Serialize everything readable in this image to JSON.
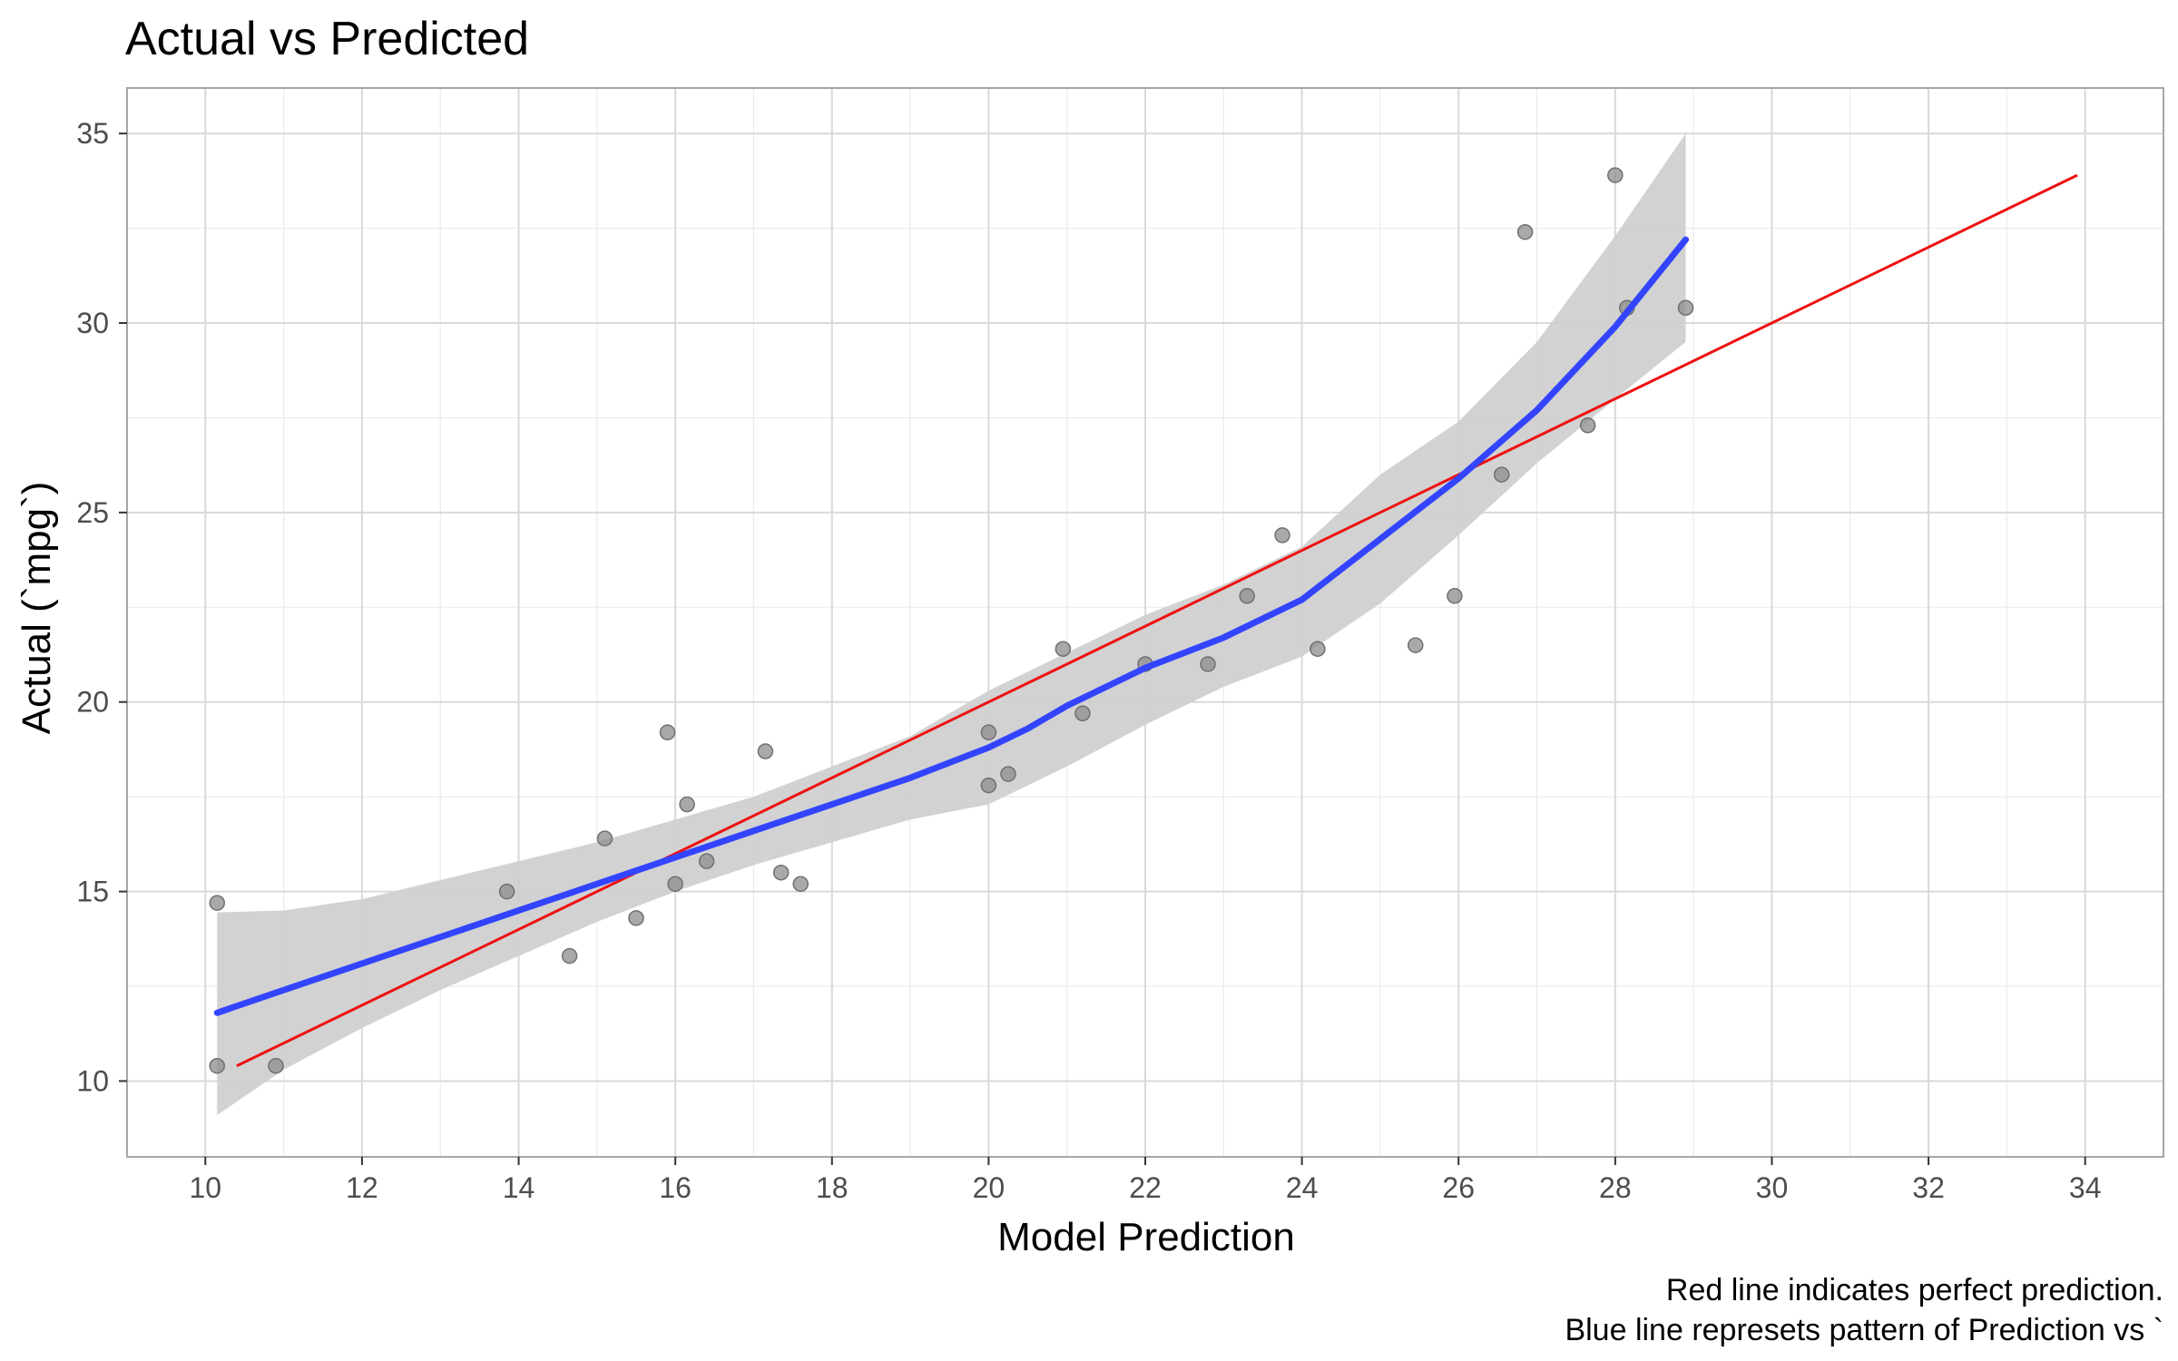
{
  "chart_data": {
    "type": "scatter",
    "title": "Actual vs Predicted",
    "xlabel": "Model Prediction",
    "ylabel": "Actual (`mpg`)",
    "caption": [
      "Red line indicates perfect prediction.",
      "Blue line represets pattern of Prediction vs `"
    ],
    "xlim": [
      9,
      35
    ],
    "ylim": [
      8,
      36.2
    ],
    "x_ticks": [
      10,
      12,
      14,
      16,
      18,
      20,
      22,
      24,
      26,
      28,
      30,
      32,
      34
    ],
    "y_ticks": [
      10,
      15,
      20,
      25,
      30,
      35
    ],
    "grid": true,
    "colors": {
      "points": "#8c8c8c",
      "smooth": "#3344ff",
      "ribbon": "#d0d0d0",
      "perfect_line": "#ee1111",
      "grid": "#d9d9d9",
      "panel_border": "#a6a6a6"
    },
    "points": [
      {
        "x": 10.15,
        "y": 14.7
      },
      {
        "x": 10.15,
        "y": 10.4
      },
      {
        "x": 10.9,
        "y": 10.4
      },
      {
        "x": 13.85,
        "y": 15.0
      },
      {
        "x": 14.65,
        "y": 13.3
      },
      {
        "x": 15.1,
        "y": 16.4
      },
      {
        "x": 15.5,
        "y": 14.3
      },
      {
        "x": 15.9,
        "y": 19.2
      },
      {
        "x": 16.0,
        "y": 15.2
      },
      {
        "x": 16.15,
        "y": 17.3
      },
      {
        "x": 16.4,
        "y": 15.8
      },
      {
        "x": 17.15,
        "y": 18.7
      },
      {
        "x": 17.35,
        "y": 15.5
      },
      {
        "x": 17.6,
        "y": 15.2
      },
      {
        "x": 20.0,
        "y": 19.2
      },
      {
        "x": 20.0,
        "y": 17.8
      },
      {
        "x": 20.25,
        "y": 18.1
      },
      {
        "x": 20.95,
        "y": 21.4
      },
      {
        "x": 21.2,
        "y": 19.7
      },
      {
        "x": 22.0,
        "y": 21.0
      },
      {
        "x": 22.8,
        "y": 21.0
      },
      {
        "x": 23.3,
        "y": 22.8
      },
      {
        "x": 23.75,
        "y": 24.4
      },
      {
        "x": 24.2,
        "y": 21.4
      },
      {
        "x": 25.45,
        "y": 21.5
      },
      {
        "x": 25.95,
        "y": 22.8
      },
      {
        "x": 26.55,
        "y": 26.0
      },
      {
        "x": 26.85,
        "y": 32.4
      },
      {
        "x": 27.65,
        "y": 27.3
      },
      {
        "x": 28.0,
        "y": 33.9
      },
      {
        "x": 28.15,
        "y": 30.4
      },
      {
        "x": 28.9,
        "y": 30.4
      }
    ],
    "perfect_line": [
      {
        "x": 10.4,
        "y": 10.4
      },
      {
        "x": 33.9,
        "y": 33.9
      }
    ],
    "smooth": [
      {
        "x": 10.15,
        "y": 11.8,
        "lo": 9.1,
        "hi": 14.45
      },
      {
        "x": 11.0,
        "y": 12.4,
        "lo": 10.3,
        "hi": 14.5
      },
      {
        "x": 12.0,
        "y": 13.1,
        "lo": 11.4,
        "hi": 14.8
      },
      {
        "x": 13.0,
        "y": 13.8,
        "lo": 12.4,
        "hi": 15.3
      },
      {
        "x": 14.0,
        "y": 14.5,
        "lo": 13.3,
        "hi": 15.8
      },
      {
        "x": 15.0,
        "y": 15.2,
        "lo": 14.2,
        "hi": 16.3
      },
      {
        "x": 16.0,
        "y": 15.9,
        "lo": 15.0,
        "hi": 16.9
      },
      {
        "x": 17.0,
        "y": 16.6,
        "lo": 15.7,
        "hi": 17.5
      },
      {
        "x": 18.0,
        "y": 17.3,
        "lo": 16.3,
        "hi": 18.3
      },
      {
        "x": 19.0,
        "y": 18.0,
        "lo": 16.9,
        "hi": 19.1
      },
      {
        "x": 20.0,
        "y": 18.8,
        "lo": 17.3,
        "hi": 20.3
      },
      {
        "x": 20.5,
        "y": 19.3,
        "lo": 17.8,
        "hi": 20.8
      },
      {
        "x": 21.0,
        "y": 19.9,
        "lo": 18.3,
        "hi": 21.3
      },
      {
        "x": 22.0,
        "y": 20.9,
        "lo": 19.4,
        "hi": 22.3
      },
      {
        "x": 23.0,
        "y": 21.7,
        "lo": 20.4,
        "hi": 23.1
      },
      {
        "x": 24.0,
        "y": 22.7,
        "lo": 21.2,
        "hi": 24.1
      },
      {
        "x": 25.0,
        "y": 24.3,
        "lo": 22.6,
        "hi": 26.0
      },
      {
        "x": 26.0,
        "y": 25.9,
        "lo": 24.4,
        "hi": 27.4
      },
      {
        "x": 27.0,
        "y": 27.7,
        "lo": 26.3,
        "hi": 29.5
      },
      {
        "x": 28.0,
        "y": 29.9,
        "lo": 28.0,
        "hi": 32.3
      },
      {
        "x": 28.9,
        "y": 32.2,
        "lo": 29.5,
        "hi": 35.0
      }
    ]
  }
}
